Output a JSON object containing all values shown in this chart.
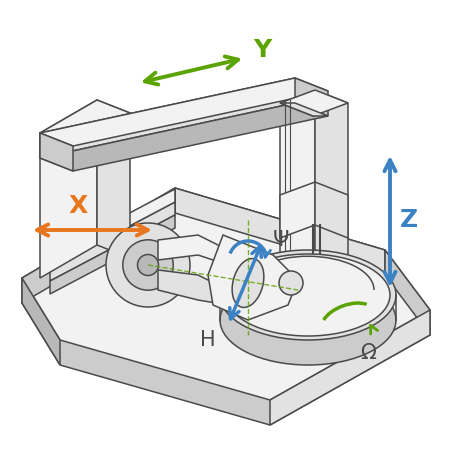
{
  "background_color": "#ffffff",
  "arrow_colors": {
    "X": "#E8761E",
    "Y": "#5BA300",
    "Z": "#3B82C4",
    "psi": "#3B82C4",
    "H": "#3B82C4",
    "omega": "#5BA300"
  },
  "labels": {
    "X": "X",
    "Y": "Y",
    "Z": "Z",
    "psi": "Ψ",
    "H": "H",
    "omega": "Ω"
  },
  "figsize": [
    4.74,
    4.73
  ],
  "dpi": 100,
  "line_color": "#4a4a4a",
  "line_width": 1.1,
  "face_colors": {
    "light": "#f2f2f2",
    "mid": "#e2e2e2",
    "dark": "#cccccc",
    "darker": "#b8b8b8"
  }
}
